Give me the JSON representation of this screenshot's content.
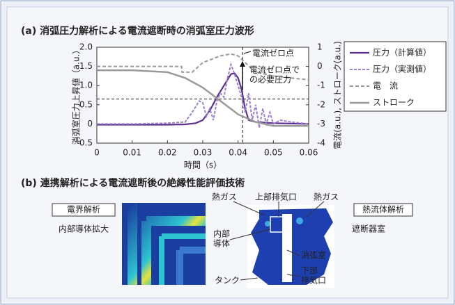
{
  "chart_data": {
    "type": "line",
    "title": "(a) 消弧圧力解析による電流遮断時の消弧室圧力波形",
    "xlabel": "時間（s）",
    "ylabel": "消弧室圧力上昇値（a.u.）",
    "y2label": "電流(a.u.), ストローク(a.u.)",
    "xlim": [
      0,
      0.06
    ],
    "xticks": [
      0,
      0.01,
      0.02,
      0.03,
      0.04,
      0.05,
      0.06
    ],
    "ylim": [
      -0.5,
      2.0
    ],
    "yticks": [
      -0.5,
      0,
      0.5,
      {
        "value": 1,
        "label": "1.0"
      },
      1.5,
      {
        "value": 2,
        "label": "2.0"
      }
    ],
    "y2lim": [
      -4,
      1
    ],
    "y2ticks": [
      -4,
      -3,
      -2,
      -1,
      0,
      1
    ],
    "vlines": [
      0.0413
    ],
    "hlines": [
      0.65
    ],
    "annotations": [
      {
        "lines": [
          "電流ゼロ点"
        ]
      },
      {
        "lines": [
          "電流ゼロ点で",
          "の必要圧力"
        ]
      }
    ],
    "series": [
      {
        "name": "圧力（計算値）",
        "color": "#5b2d8e",
        "dash": "",
        "width": 2.2,
        "x": [
          0,
          0.01,
          0.02,
          0.025,
          0.028,
          0.03,
          0.032,
          0.034,
          0.036,
          0.038,
          0.039,
          0.04,
          0.041,
          0.042,
          0.043,
          0.045,
          0.05,
          0.06
        ],
        "values": [
          -0.02,
          -0.02,
          -0.02,
          -0.01,
          0.02,
          0.1,
          0.35,
          0.7,
          1.0,
          1.3,
          1.32,
          1.2,
          0.9,
          0.4,
          0.1,
          0.05,
          0.02,
          0
        ]
      },
      {
        "name": "圧力（実測値）",
        "color": "#9b7fd0",
        "dash": "4 2",
        "width": 2,
        "x": [
          0,
          0.01,
          0.02,
          0.025,
          0.027,
          0.029,
          0.03,
          0.031,
          0.032,
          0.033,
          0.034,
          0.035,
          0.036,
          0.037,
          0.038,
          0.039,
          0.04,
          0.041,
          0.042,
          0.043,
          0.044,
          0.045,
          0.046,
          0.047,
          0.048,
          0.049,
          0.05,
          0.052,
          0.055,
          0.06
        ],
        "values": [
          0,
          0,
          0.02,
          0.05,
          0.3,
          0.6,
          0.55,
          0.2,
          0.4,
          0.1,
          0.6,
          0.8,
          0.7,
          1.2,
          1.55,
          1.3,
          1.0,
          0.7,
          0.3,
          0.8,
          0.1,
          0.5,
          -0.1,
          0.4,
          0,
          0.3,
          0,
          0.1,
          0.05,
          0
        ]
      },
      {
        "name": "電　流",
        "color": "#999999",
        "dash": "5 3",
        "width": 2,
        "axis": "y2",
        "x": [
          0,
          0.024,
          0.0241,
          0.027,
          0.03,
          0.035,
          0.038,
          0.04,
          0.042,
          0.045,
          0.05,
          0.055,
          0.06
        ],
        "values": [
          0,
          0,
          -0.3,
          -0.3,
          0.2,
          0.55,
          0.65,
          0.55,
          0.2,
          -0.3,
          -0.5,
          -0.6,
          -0.7
        ]
      },
      {
        "name": "ストローク",
        "color": "#999999",
        "dash": "",
        "width": 2.5,
        "axis": "y2",
        "x": [
          0,
          0.01,
          0.02,
          0.025,
          0.03,
          0.035,
          0.04,
          0.045,
          0.05,
          0.06
        ],
        "values": [
          -0.2,
          -0.2,
          -0.3,
          -0.6,
          -1.1,
          -1.8,
          -2.5,
          -2.9,
          -3.1,
          -3.1
        ]
      }
    ]
  },
  "panel_b": {
    "title": "(b) 連携解析による電流遮断後の絶縁性能評価技術",
    "labels": [
      {
        "lines": [
          "電界解析"
        ]
      },
      {
        "lines": [
          "内部導体拡大"
        ]
      },
      {
        "lines": [
          "熱流体解析"
        ]
      },
      {
        "lines": [
          "遮断器室"
        ]
      },
      {
        "lines": [
          "熱ガス"
        ]
      },
      {
        "lines": [
          "上部排気口"
        ]
      },
      {
        "lines": [
          "熱ガス"
        ]
      },
      {
        "lines": [
          "内部",
          "導体"
        ]
      },
      {
        "lines": [
          "消弧室"
        ]
      },
      {
        "lines": [
          "下部",
          "排気口"
        ]
      },
      {
        "lines": [
          "タンク"
        ]
      }
    ]
  }
}
